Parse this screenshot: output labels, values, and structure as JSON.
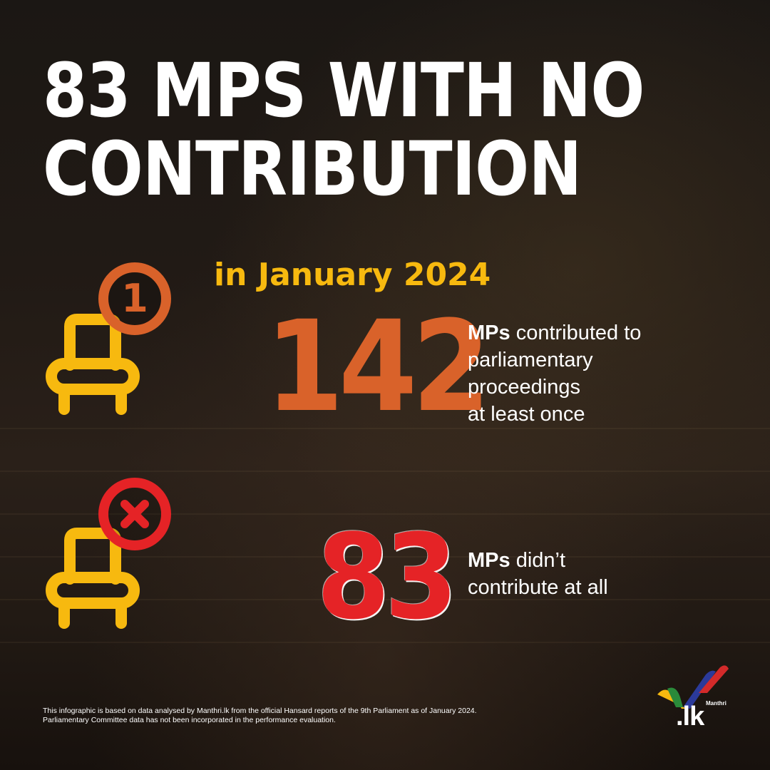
{
  "headline": {
    "line1": "83 MPS WITH NO",
    "line2": "CONTRIBUTION"
  },
  "subhead": "in January 2024",
  "stats": [
    {
      "number": "142",
      "label_bold": "MPs",
      "label_rest": " contributed to",
      "lines": [
        "parliamentary",
        "proceedings",
        "at least once"
      ],
      "badge": "1",
      "badge_icon": "number-one-circle-icon",
      "color": "#d9622a"
    },
    {
      "number": "83",
      "label_bold": "MPs",
      "label_rest": " didn’t",
      "lines": [
        "contribute at all"
      ],
      "badge": "×",
      "badge_icon": "cross-circle-icon",
      "color": "#e52326"
    }
  ],
  "footnote": {
    "line1": "This infographic is based on data analysed by Manthri.lk from the official Hansard reports of the 9th Parliament as of January 2024.",
    "line2": "Parliamentary Committee data has not been incorporated in the performance evaluation."
  },
  "logo": {
    "small": "Manthri",
    "big": ".lk"
  },
  "colors": {
    "white": "#ffffff",
    "yellow": "#f7b90f",
    "orange": "#d9622a",
    "red": "#e52326"
  }
}
